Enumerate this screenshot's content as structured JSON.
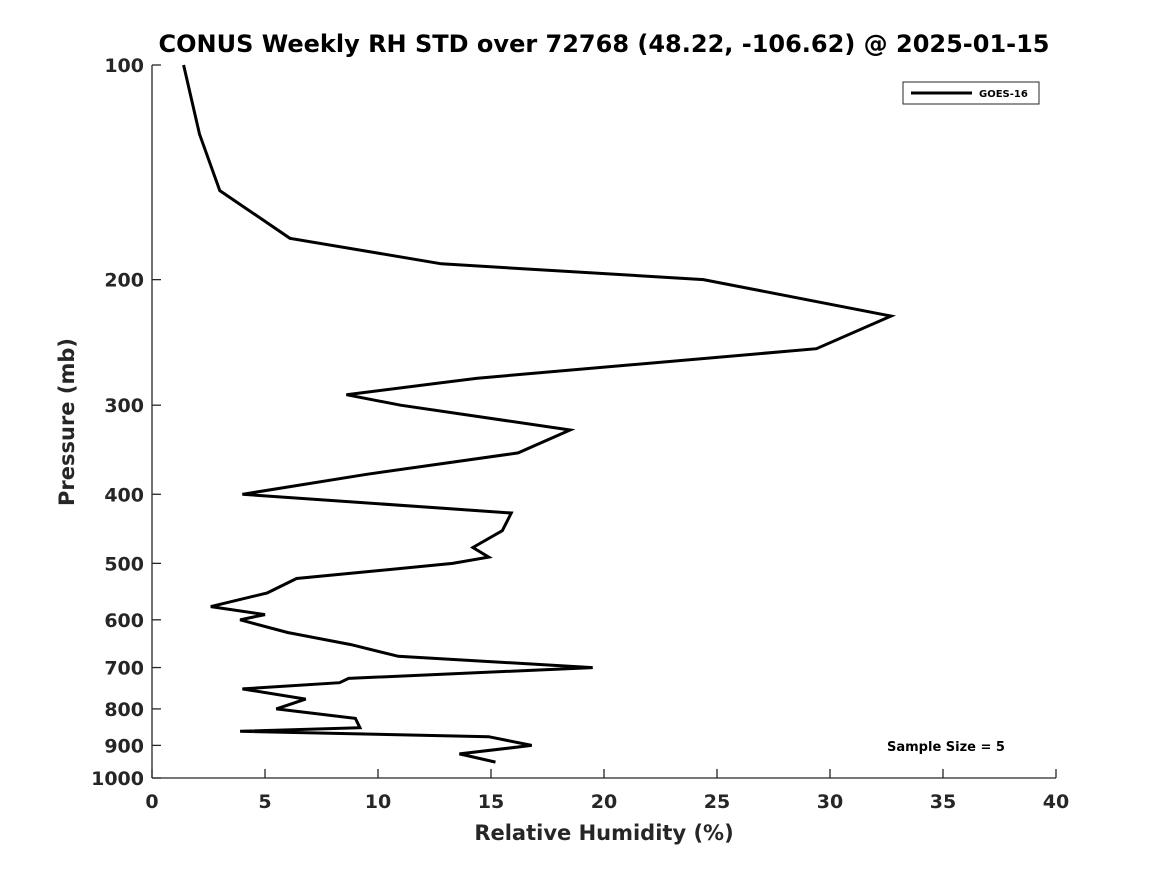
{
  "chart_data": {
    "type": "line",
    "title": "CONUS Weekly RH STD over 72768 (48.22, -106.62) @ 2025-01-15",
    "xlabel": "Relative Humidity (%)",
    "ylabel": "Pressure (mb)",
    "xlim": [
      0,
      40
    ],
    "ylim": [
      100,
      1000
    ],
    "yscale": "log",
    "y_reversed": true,
    "x_ticks": [
      "0",
      "5",
      "10",
      "15",
      "20",
      "25",
      "30",
      "35",
      "40"
    ],
    "y_ticks": [
      "100",
      "200",
      "300",
      "400",
      "500",
      "600",
      "700",
      "800",
      "900",
      "1000"
    ],
    "grid": false,
    "legend_position": "top-right",
    "annotation": "Sample Size = 5",
    "series": [
      {
        "name": "GOES-16",
        "color": "#000000",
        "points": [
          [
            1.4,
            100
          ],
          [
            2.1,
            125
          ],
          [
            3.0,
            150
          ],
          [
            6.1,
            175
          ],
          [
            12.8,
            190
          ],
          [
            24.4,
            200
          ],
          [
            32.7,
            225
          ],
          [
            29.4,
            250
          ],
          [
            14.4,
            275
          ],
          [
            8.6,
            290
          ],
          [
            11.0,
            300
          ],
          [
            18.5,
            325
          ],
          [
            16.2,
            350
          ],
          [
            9.5,
            375
          ],
          [
            4.0,
            400
          ],
          [
            15.9,
            425
          ],
          [
            15.5,
            450
          ],
          [
            14.2,
            475
          ],
          [
            14.9,
            490
          ],
          [
            13.3,
            500
          ],
          [
            6.4,
            525
          ],
          [
            5.1,
            550
          ],
          [
            2.6,
            575
          ],
          [
            5.0,
            590
          ],
          [
            3.9,
            600
          ],
          [
            6.0,
            625
          ],
          [
            8.8,
            650
          ],
          [
            10.9,
            675
          ],
          [
            19.5,
            700
          ],
          [
            8.7,
            725
          ],
          [
            8.3,
            735
          ],
          [
            4.0,
            750
          ],
          [
            6.8,
            775
          ],
          [
            5.5,
            800
          ],
          [
            9.0,
            825
          ],
          [
            9.2,
            850
          ],
          [
            3.9,
            860
          ],
          [
            14.9,
            875
          ],
          [
            16.8,
            900
          ],
          [
            13.6,
            925
          ],
          [
            15.2,
            950
          ]
        ]
      }
    ]
  }
}
